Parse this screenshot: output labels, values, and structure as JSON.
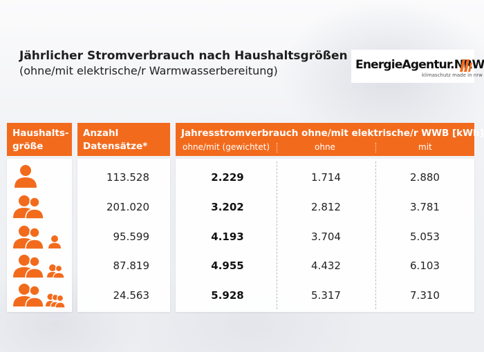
{
  "header": {
    "title": "Jährlicher Stromverbrauch nach Haushaltsgrößen",
    "subtitle": "(ohne/mit elektrische/r Warmwasserbereitung)"
  },
  "logo": {
    "text": "EnergieAgentur.NRW",
    "tagline": "klimaschutz made in nrw"
  },
  "colors": {
    "accent": "#f26b1d",
    "person_icon": "#f26b1d",
    "text": "#1e1e1e"
  },
  "table": {
    "col_household": "Haushalts-\ngröße",
    "col_household_l1": "Haushalts-",
    "col_household_l2": "größe",
    "col_records_l1": "Anzahl",
    "col_records_l2": "Datensätze*",
    "col_consumption": "Jahresstromverbrauch ohne/mit elektrische/r WWB [kWh]",
    "sub_weighted": "ohne/mit (gewichtet)",
    "sub_without": "ohne",
    "sub_with": "mit"
  },
  "chart_data": {
    "type": "table",
    "title": "Jährlicher Stromverbrauch nach Haushaltsgrößen",
    "subtitle": "(ohne/mit elektrische/r Warmwasserbereitung)",
    "columns": [
      "Haushaltsgröße",
      "Anzahl Datensätze*",
      "ohne/mit (gewichtet)",
      "ohne",
      "mit"
    ],
    "unit": "kWh",
    "rows": [
      {
        "household_size_icon": "1-person-icon",
        "persons": 1,
        "records": "113.528",
        "weighted": "2.229",
        "without": "1.714",
        "with": "2.880"
      },
      {
        "household_size_icon": "2-persons-icon",
        "persons": 2,
        "records": "201.020",
        "weighted": "3.202",
        "without": "2.812",
        "with": "3.781"
      },
      {
        "household_size_icon": "3-persons-icon",
        "persons": 3,
        "records": "95.599",
        "weighted": "4.193",
        "without": "3.704",
        "with": "5.053"
      },
      {
        "household_size_icon": "4-persons-icon",
        "persons": 4,
        "records": "87.819",
        "weighted": "4.955",
        "without": "4.432",
        "with": "6.103"
      },
      {
        "household_size_icon": "5-persons-icon",
        "persons": 5,
        "records": "24.563",
        "weighted": "5.928",
        "without": "5.317",
        "with": "7.310"
      }
    ]
  }
}
